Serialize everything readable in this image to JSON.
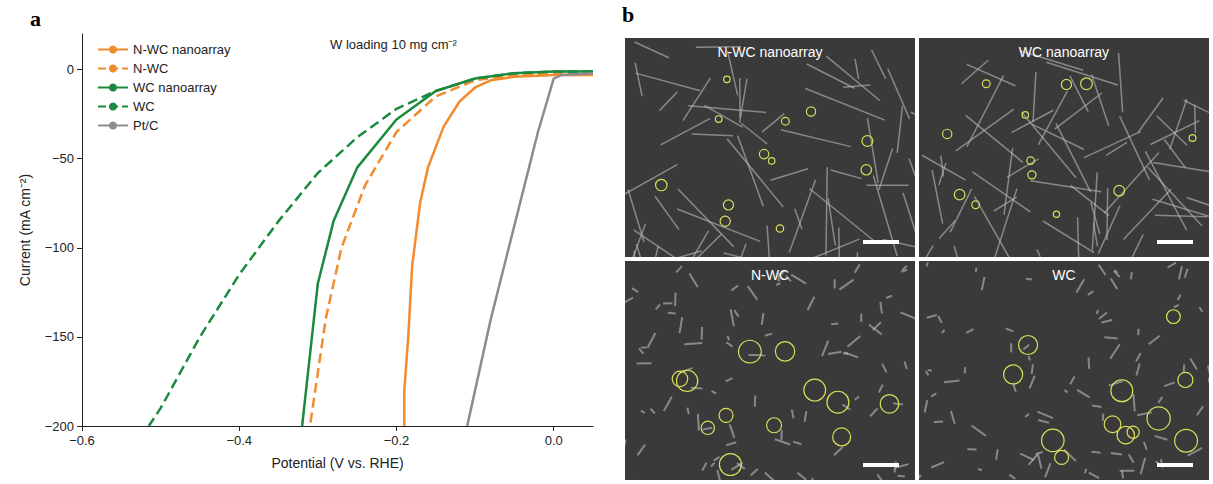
{
  "chart_data": {
    "type": "line",
    "panel": "a",
    "annotation": "W loading 10 mg cm⁻²",
    "x_label": "Potential (V vs. RHE)",
    "y_label": "Current (mA cm⁻²)",
    "xlim": [
      -0.6,
      0.05
    ],
    "xticks": [
      {
        "value": -0.6,
        "label": "−0.6"
      },
      {
        "value": -0.4,
        "label": "−0.4"
      },
      {
        "value": -0.2,
        "label": "−0.2"
      },
      {
        "value": 0,
        "label": "0.0"
      }
    ],
    "ylim": [
      -200,
      20
    ],
    "yticks": [
      {
        "value": -200,
        "label": "−200"
      },
      {
        "value": -150,
        "label": "−150"
      },
      {
        "value": -100,
        "label": "−100"
      },
      {
        "value": -50,
        "label": "−50"
      },
      0
    ],
    "grid": false,
    "legend": "top-left",
    "series": [
      {
        "name": "N-WC nanoarray",
        "color": "#f28a2e",
        "line_style": "solid",
        "x": [
          0.05,
          0,
          -0.05,
          -0.08,
          -0.1,
          -0.12,
          -0.14,
          -0.16,
          -0.17,
          -0.18,
          -0.185,
          -0.19,
          -0.19
        ],
        "values": [
          -3,
          -3,
          -4,
          -6,
          -10,
          -18,
          -32,
          -55,
          -75,
          -110,
          -150,
          -180,
          -200
        ]
      },
      {
        "name": "N-WC",
        "color": "#f28a2e",
        "line_style": "dashed",
        "x": [
          0.05,
          0,
          -0.05,
          -0.1,
          -0.15,
          -0.2,
          -0.24,
          -0.27,
          -0.29,
          -0.3,
          -0.31
        ],
        "values": [
          -2,
          -2,
          -3,
          -6,
          -15,
          -35,
          -65,
          -100,
          -140,
          -170,
          -200
        ]
      },
      {
        "name": "WC nanoarray",
        "color": "#1b8a3e",
        "line_style": "solid",
        "x": [
          0.05,
          0,
          -0.05,
          -0.1,
          -0.15,
          -0.2,
          -0.25,
          -0.28,
          -0.3,
          -0.31,
          -0.32
        ],
        "values": [
          -1,
          -1,
          -2,
          -5,
          -12,
          -28,
          -55,
          -85,
          -120,
          -160,
          -200
        ]
      },
      {
        "name": "WC",
        "color": "#1b8a3e",
        "line_style": "dashed",
        "x": [
          0.05,
          0,
          -0.05,
          -0.1,
          -0.15,
          -0.2,
          -0.25,
          -0.3,
          -0.35,
          -0.4,
          -0.45,
          -0.5,
          -0.515
        ],
        "values": [
          -1,
          -1,
          -2,
          -5,
          -12,
          -22,
          -38,
          -58,
          -85,
          -115,
          -150,
          -190,
          -200
        ]
      },
      {
        "name": "Pt/C",
        "color": "#8c8c8c",
        "line_style": "solid",
        "x": [
          0.05,
          0.01,
          0,
          -0.02,
          -0.04,
          -0.06,
          -0.08,
          -0.1,
          -0.11
        ],
        "values": [
          -2,
          -3,
          -5,
          -35,
          -70,
          -105,
          -140,
          -180,
          -200
        ]
      }
    ]
  },
  "image_panels": {
    "letter": "b",
    "titles": [
      "N-WC nanoarray",
      "WC nanoarray",
      "N-WC",
      "WC"
    ]
  }
}
